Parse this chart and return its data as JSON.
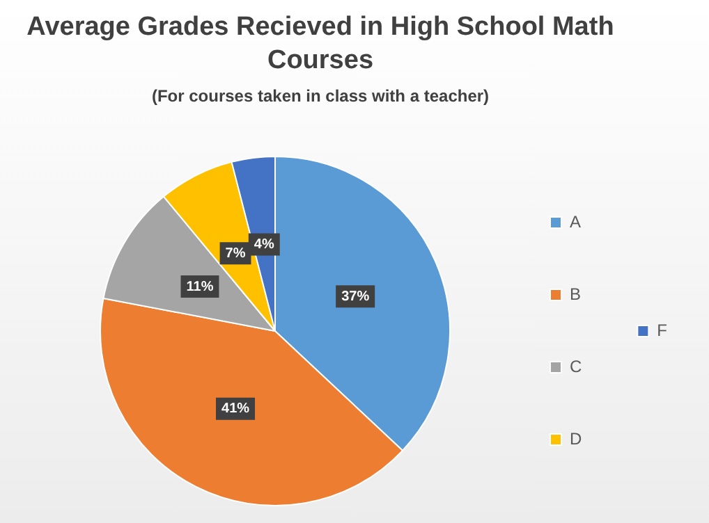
{
  "chart_data": {
    "type": "pie",
    "title": "Average Grades Recieved in High School Math Courses",
    "subtitle": "(For courses taken in class with a teacher)",
    "categories": [
      "A",
      "B",
      "C",
      "D",
      "F"
    ],
    "values": [
      37,
      41,
      11,
      7,
      4
    ],
    "colors": [
      "#5b9bd5",
      "#ed7d31",
      "#a5a5a5",
      "#ffc000",
      "#4472c4"
    ],
    "value_labels": [
      "37%",
      "41%",
      "11%",
      "7%",
      "4%"
    ],
    "legend": "right"
  }
}
